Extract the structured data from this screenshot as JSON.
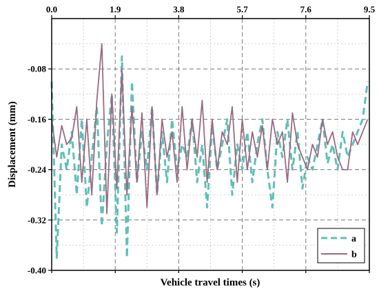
{
  "chart_data": {
    "type": "line",
    "title": "",
    "xlabel": "Vehicle travel times (s)",
    "ylabel": "Displacement (mm)",
    "xlim": [
      0,
      9.5
    ],
    "ylim": [
      -0.4,
      -0.0
    ],
    "x_ticks": [
      "0.0",
      "1.9",
      "3.8",
      "5.7",
      "7.6",
      "9.5"
    ],
    "x_tick_values": [
      0,
      1.9,
      3.8,
      5.7,
      7.6,
      9.5
    ],
    "y_ticks": [
      "-0.08",
      "-0.16",
      "-0.24",
      "-0.32",
      "-0.40"
    ],
    "y_tick_values": [
      -0.08,
      -0.16,
      -0.24,
      -0.32,
      -0.4
    ],
    "x_axis_position": "top",
    "grid": true,
    "legend_position": "bottom-right",
    "series": [
      {
        "name": "a",
        "color": "#5fbfb8",
        "style": "dashed",
        "x": [
          0.0,
          0.15,
          0.3,
          0.45,
          0.6,
          0.75,
          0.9,
          1.05,
          1.2,
          1.35,
          1.5,
          1.65,
          1.8,
          1.95,
          2.1,
          2.25,
          2.4,
          2.55,
          2.7,
          2.85,
          3.0,
          3.15,
          3.3,
          3.45,
          3.6,
          3.75,
          3.9,
          4.05,
          4.2,
          4.35,
          4.5,
          4.65,
          4.8,
          4.95,
          5.1,
          5.25,
          5.4,
          5.55,
          5.7,
          5.85,
          6.0,
          6.15,
          6.3,
          6.45,
          6.6,
          6.75,
          6.9,
          7.05,
          7.2,
          7.35,
          7.5,
          7.65,
          7.8,
          7.95,
          8.1,
          8.25,
          8.4,
          8.55,
          8.7,
          8.85,
          9.0,
          9.15,
          9.3,
          9.45
        ],
        "values": [
          -0.1,
          -0.38,
          -0.2,
          -0.24,
          -0.18,
          -0.28,
          -0.16,
          -0.3,
          -0.22,
          -0.14,
          -0.33,
          -0.2,
          -0.12,
          -0.34,
          -0.06,
          -0.38,
          -0.1,
          -0.26,
          -0.18,
          -0.24,
          -0.14,
          -0.28,
          -0.18,
          -0.26,
          -0.16,
          -0.24,
          -0.2,
          -0.22,
          -0.16,
          -0.26,
          -0.2,
          -0.3,
          -0.17,
          -0.24,
          -0.2,
          -0.16,
          -0.28,
          -0.2,
          -0.24,
          -0.18,
          -0.26,
          -0.2,
          -0.16,
          -0.24,
          -0.3,
          -0.18,
          -0.22,
          -0.16,
          -0.24,
          -0.18,
          -0.27,
          -0.22,
          -0.24,
          -0.2,
          -0.16,
          -0.23,
          -0.2,
          -0.24,
          -0.18,
          -0.22,
          -0.2,
          -0.18,
          -0.16,
          -0.1
        ]
      },
      {
        "name": "b",
        "color": "#9a6a80",
        "style": "solid",
        "x": [
          0.0,
          0.15,
          0.3,
          0.45,
          0.6,
          0.75,
          0.9,
          1.05,
          1.2,
          1.35,
          1.5,
          1.65,
          1.8,
          1.95,
          2.1,
          2.25,
          2.4,
          2.55,
          2.7,
          2.85,
          3.0,
          3.15,
          3.3,
          3.45,
          3.6,
          3.75,
          3.9,
          4.05,
          4.2,
          4.35,
          4.5,
          4.65,
          4.8,
          4.95,
          5.1,
          5.25,
          5.4,
          5.55,
          5.7,
          5.85,
          6.0,
          6.15,
          6.3,
          6.45,
          6.6,
          6.75,
          6.9,
          7.05,
          7.2,
          7.35,
          7.5,
          7.65,
          7.8,
          7.95,
          8.1,
          8.25,
          8.4,
          8.55,
          8.7,
          8.85,
          9.0,
          9.15,
          9.3,
          9.45
        ],
        "values": [
          -0.16,
          -0.22,
          -0.17,
          -0.2,
          -0.19,
          -0.14,
          -0.26,
          -0.16,
          -0.28,
          -0.13,
          -0.04,
          -0.31,
          -0.12,
          -0.27,
          -0.08,
          -0.28,
          -0.14,
          -0.26,
          -0.15,
          -0.3,
          -0.14,
          -0.28,
          -0.16,
          -0.22,
          -0.18,
          -0.26,
          -0.14,
          -0.24,
          -0.16,
          -0.22,
          -0.13,
          -0.26,
          -0.16,
          -0.24,
          -0.18,
          -0.2,
          -0.14,
          -0.26,
          -0.16,
          -0.24,
          -0.18,
          -0.22,
          -0.17,
          -0.24,
          -0.16,
          -0.2,
          -0.18,
          -0.26,
          -0.15,
          -0.2,
          -0.22,
          -0.24,
          -0.2,
          -0.22,
          -0.16,
          -0.2,
          -0.18,
          -0.22,
          -0.24,
          -0.24,
          -0.18,
          -0.2,
          -0.18,
          -0.16
        ]
      }
    ]
  }
}
